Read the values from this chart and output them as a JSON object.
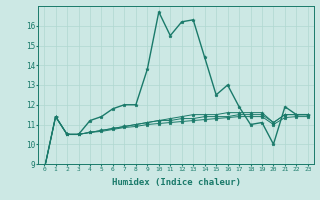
{
  "xlabel": "Humidex (Indice chaleur)",
  "ylabel": "",
  "bg_color": "#cce8e4",
  "grid_color": "#b0d8d0",
  "line_color": "#1a7a6a",
  "xlim": [
    -0.5,
    23.5
  ],
  "ylim": [
    9,
    17
  ],
  "xticks": [
    0,
    1,
    2,
    3,
    4,
    5,
    6,
    7,
    8,
    9,
    10,
    11,
    12,
    13,
    14,
    15,
    16,
    17,
    18,
    19,
    20,
    21,
    22,
    23
  ],
  "yticks": [
    9,
    10,
    11,
    12,
    13,
    14,
    15,
    16
  ],
  "series": [
    [
      8.7,
      11.4,
      10.5,
      10.5,
      11.2,
      11.4,
      11.8,
      12.0,
      12.0,
      13.8,
      16.7,
      15.5,
      16.2,
      16.3,
      14.4,
      12.5,
      13.0,
      11.9,
      11.0,
      11.1,
      10.0,
      11.9,
      11.5,
      11.5
    ],
    [
      8.7,
      11.4,
      10.5,
      10.5,
      10.6,
      10.7,
      10.8,
      10.9,
      11.0,
      11.1,
      11.2,
      11.3,
      11.4,
      11.5,
      11.5,
      11.5,
      11.6,
      11.6,
      11.6,
      11.6,
      11.1,
      11.5,
      11.5,
      11.5
    ],
    [
      8.7,
      11.4,
      10.5,
      10.5,
      10.6,
      10.7,
      10.8,
      10.9,
      11.0,
      11.1,
      11.2,
      11.2,
      11.3,
      11.3,
      11.4,
      11.4,
      11.4,
      11.5,
      11.5,
      11.5,
      11.1,
      11.5,
      11.5,
      11.5
    ],
    [
      8.7,
      11.4,
      10.5,
      10.5,
      10.6,
      10.65,
      10.75,
      10.85,
      10.9,
      11.0,
      11.05,
      11.1,
      11.15,
      11.2,
      11.25,
      11.3,
      11.35,
      11.4,
      11.4,
      11.4,
      11.0,
      11.35,
      11.4,
      11.4
    ]
  ]
}
